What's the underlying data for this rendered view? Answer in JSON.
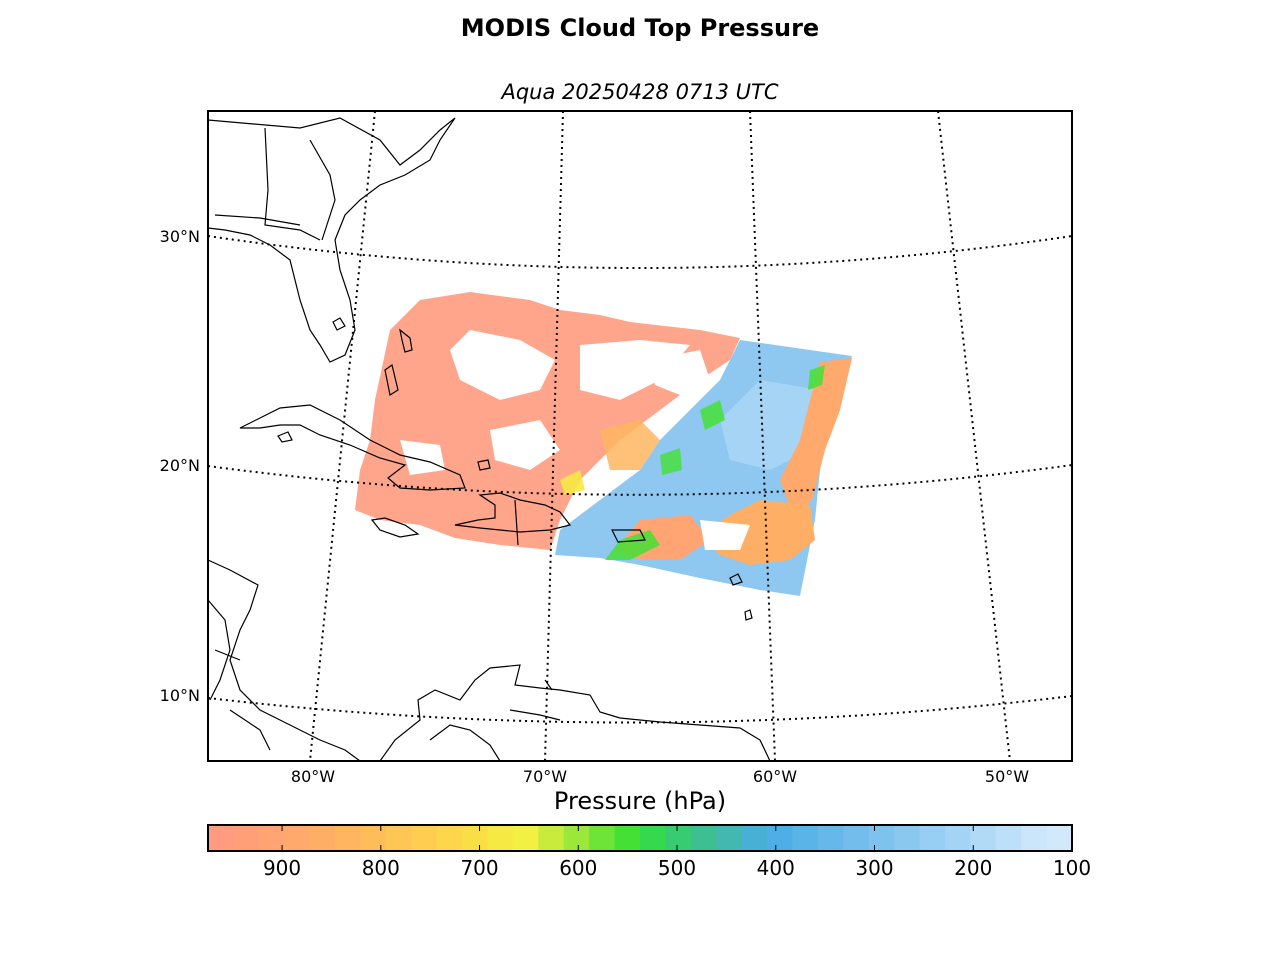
{
  "title": "MODIS Cloud Top Pressure",
  "subtitle": "Aqua 20250428 0713 UTC",
  "map": {
    "lat_labels": [
      "30°N",
      "20°N",
      "10°N"
    ],
    "lon_labels": [
      "80°W",
      "70°W",
      "60°W",
      "50°W"
    ]
  },
  "colorbar": {
    "label": "Pressure (hPa)",
    "range": [
      975,
      100
    ],
    "ticks": [
      "900",
      "800",
      "700",
      "600",
      "500",
      "400",
      "300",
      "200",
      "100"
    ],
    "colors": [
      "#ff9b7e",
      "#ff9f78",
      "#ffa472",
      "#ffa96c",
      "#ffae66",
      "#ffb560",
      "#ffbd5a",
      "#ffc555",
      "#ffce50",
      "#fed64b",
      "#f9df45",
      "#f7e943",
      "#f2f040",
      "#c9eb3c",
      "#9be83a",
      "#6fe438",
      "#45e035",
      "#34d94e",
      "#38cc72",
      "#3dbf92",
      "#42b8b0",
      "#47b0d4",
      "#4eafe6",
      "#5ab4e8",
      "#66b8ea",
      "#72bdec",
      "#7ec2ee",
      "#8ac8f0",
      "#97cef3",
      "#a4d4f5",
      "#b1daf7",
      "#bedff9",
      "#cbe5fb",
      "#d2e9fc"
    ]
  },
  "legend_colors": {
    "low_cloud": "#ff9b7e",
    "mid_cloud": "#ffd64b",
    "green": "#45e035",
    "high_cloud": "#7ec2ee"
  }
}
